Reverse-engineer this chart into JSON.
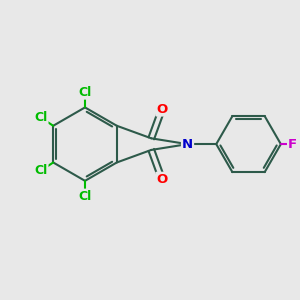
{
  "background_color": "#e8e8e8",
  "bond_color": "#2d5a4a",
  "bond_width": 1.5,
  "atom_colors": {
    "O": "#ff0000",
    "N": "#0000cc",
    "Cl": "#00bb00",
    "F": "#cc00cc"
  },
  "font_size": 9.5
}
